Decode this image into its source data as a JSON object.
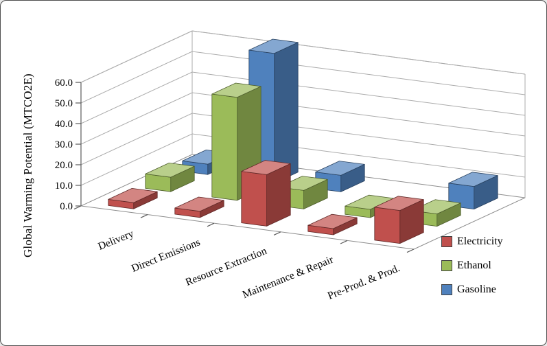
{
  "chart_data": {
    "type": "bar",
    "projection": "3d",
    "title": "",
    "xlabel": "",
    "ylabel": "Global Warming Potential (MTCO2E)",
    "categories": [
      "Delivery",
      "Direct Emissions",
      "Resource Extraction",
      "Maintenance & Repair",
      "Pre-Prod. & Prod."
    ],
    "series": [
      {
        "name": "Electricity",
        "color": "#C0504D",
        "values": [
          3,
          3,
          25,
          3,
          16
        ]
      },
      {
        "name": "Ethanol",
        "color": "#9BBB59",
        "values": [
          7,
          50,
          9,
          4,
          6
        ]
      },
      {
        "name": "Gasoline",
        "color": "#4F81BD",
        "values": [
          5,
          63,
          8,
          0,
          11
        ]
      }
    ],
    "y_axis": {
      "min": 0,
      "max": 60,
      "step": 10,
      "tick_labels": [
        "0.0",
        "10.0",
        "20.0",
        "30.0",
        "40.0",
        "50.0",
        "60.0"
      ]
    },
    "ylim": [
      0,
      60
    ],
    "grid": true,
    "legend_position": "bottom-right",
    "colors": {
      "gridline": "#ABABAB",
      "axis": "#595959",
      "text": "#000000",
      "background": "#FFFFFF"
    }
  }
}
